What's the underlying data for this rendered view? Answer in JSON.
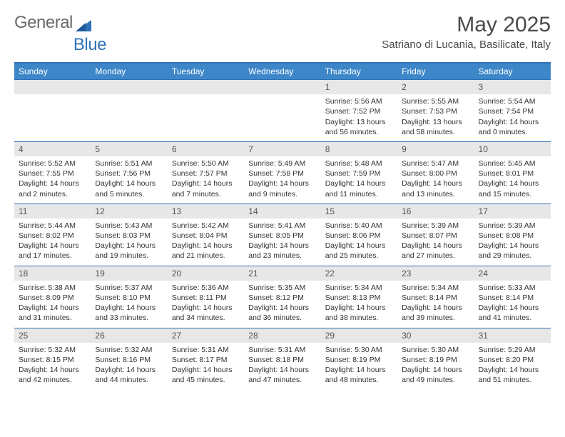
{
  "logo": {
    "text1": "General",
    "text2": "Blue"
  },
  "title": "May 2025",
  "location": "Satriano di Lucania, Basilicate, Italy",
  "day_names": [
    "Sunday",
    "Monday",
    "Tuesday",
    "Wednesday",
    "Thursday",
    "Friday",
    "Saturday"
  ],
  "colors": {
    "header_bg": "#3d87c9",
    "border": "#2e72b8",
    "daynum_bg": "#e7e7e7",
    "text": "#333333"
  },
  "weeks": [
    [
      {
        "blank": true
      },
      {
        "blank": true
      },
      {
        "blank": true
      },
      {
        "blank": true
      },
      {
        "day": "1",
        "sunrise": "Sunrise: 5:56 AM",
        "sunset": "Sunset: 7:52 PM",
        "daylight": "Daylight: 13 hours and 56 minutes."
      },
      {
        "day": "2",
        "sunrise": "Sunrise: 5:55 AM",
        "sunset": "Sunset: 7:53 PM",
        "daylight": "Daylight: 13 hours and 58 minutes."
      },
      {
        "day": "3",
        "sunrise": "Sunrise: 5:54 AM",
        "sunset": "Sunset: 7:54 PM",
        "daylight": "Daylight: 14 hours and 0 minutes."
      }
    ],
    [
      {
        "day": "4",
        "sunrise": "Sunrise: 5:52 AM",
        "sunset": "Sunset: 7:55 PM",
        "daylight": "Daylight: 14 hours and 2 minutes."
      },
      {
        "day": "5",
        "sunrise": "Sunrise: 5:51 AM",
        "sunset": "Sunset: 7:56 PM",
        "daylight": "Daylight: 14 hours and 5 minutes."
      },
      {
        "day": "6",
        "sunrise": "Sunrise: 5:50 AM",
        "sunset": "Sunset: 7:57 PM",
        "daylight": "Daylight: 14 hours and 7 minutes."
      },
      {
        "day": "7",
        "sunrise": "Sunrise: 5:49 AM",
        "sunset": "Sunset: 7:58 PM",
        "daylight": "Daylight: 14 hours and 9 minutes."
      },
      {
        "day": "8",
        "sunrise": "Sunrise: 5:48 AM",
        "sunset": "Sunset: 7:59 PM",
        "daylight": "Daylight: 14 hours and 11 minutes."
      },
      {
        "day": "9",
        "sunrise": "Sunrise: 5:47 AM",
        "sunset": "Sunset: 8:00 PM",
        "daylight": "Daylight: 14 hours and 13 minutes."
      },
      {
        "day": "10",
        "sunrise": "Sunrise: 5:45 AM",
        "sunset": "Sunset: 8:01 PM",
        "daylight": "Daylight: 14 hours and 15 minutes."
      }
    ],
    [
      {
        "day": "11",
        "sunrise": "Sunrise: 5:44 AM",
        "sunset": "Sunset: 8:02 PM",
        "daylight": "Daylight: 14 hours and 17 minutes."
      },
      {
        "day": "12",
        "sunrise": "Sunrise: 5:43 AM",
        "sunset": "Sunset: 8:03 PM",
        "daylight": "Daylight: 14 hours and 19 minutes."
      },
      {
        "day": "13",
        "sunrise": "Sunrise: 5:42 AM",
        "sunset": "Sunset: 8:04 PM",
        "daylight": "Daylight: 14 hours and 21 minutes."
      },
      {
        "day": "14",
        "sunrise": "Sunrise: 5:41 AM",
        "sunset": "Sunset: 8:05 PM",
        "daylight": "Daylight: 14 hours and 23 minutes."
      },
      {
        "day": "15",
        "sunrise": "Sunrise: 5:40 AM",
        "sunset": "Sunset: 8:06 PM",
        "daylight": "Daylight: 14 hours and 25 minutes."
      },
      {
        "day": "16",
        "sunrise": "Sunrise: 5:39 AM",
        "sunset": "Sunset: 8:07 PM",
        "daylight": "Daylight: 14 hours and 27 minutes."
      },
      {
        "day": "17",
        "sunrise": "Sunrise: 5:39 AM",
        "sunset": "Sunset: 8:08 PM",
        "daylight": "Daylight: 14 hours and 29 minutes."
      }
    ],
    [
      {
        "day": "18",
        "sunrise": "Sunrise: 5:38 AM",
        "sunset": "Sunset: 8:09 PM",
        "daylight": "Daylight: 14 hours and 31 minutes."
      },
      {
        "day": "19",
        "sunrise": "Sunrise: 5:37 AM",
        "sunset": "Sunset: 8:10 PM",
        "daylight": "Daylight: 14 hours and 33 minutes."
      },
      {
        "day": "20",
        "sunrise": "Sunrise: 5:36 AM",
        "sunset": "Sunset: 8:11 PM",
        "daylight": "Daylight: 14 hours and 34 minutes."
      },
      {
        "day": "21",
        "sunrise": "Sunrise: 5:35 AM",
        "sunset": "Sunset: 8:12 PM",
        "daylight": "Daylight: 14 hours and 36 minutes."
      },
      {
        "day": "22",
        "sunrise": "Sunrise: 5:34 AM",
        "sunset": "Sunset: 8:13 PM",
        "daylight": "Daylight: 14 hours and 38 minutes."
      },
      {
        "day": "23",
        "sunrise": "Sunrise: 5:34 AM",
        "sunset": "Sunset: 8:14 PM",
        "daylight": "Daylight: 14 hours and 39 minutes."
      },
      {
        "day": "24",
        "sunrise": "Sunrise: 5:33 AM",
        "sunset": "Sunset: 8:14 PM",
        "daylight": "Daylight: 14 hours and 41 minutes."
      }
    ],
    [
      {
        "day": "25",
        "sunrise": "Sunrise: 5:32 AM",
        "sunset": "Sunset: 8:15 PM",
        "daylight": "Daylight: 14 hours and 42 minutes."
      },
      {
        "day": "26",
        "sunrise": "Sunrise: 5:32 AM",
        "sunset": "Sunset: 8:16 PM",
        "daylight": "Daylight: 14 hours and 44 minutes."
      },
      {
        "day": "27",
        "sunrise": "Sunrise: 5:31 AM",
        "sunset": "Sunset: 8:17 PM",
        "daylight": "Daylight: 14 hours and 45 minutes."
      },
      {
        "day": "28",
        "sunrise": "Sunrise: 5:31 AM",
        "sunset": "Sunset: 8:18 PM",
        "daylight": "Daylight: 14 hours and 47 minutes."
      },
      {
        "day": "29",
        "sunrise": "Sunrise: 5:30 AM",
        "sunset": "Sunset: 8:19 PM",
        "daylight": "Daylight: 14 hours and 48 minutes."
      },
      {
        "day": "30",
        "sunrise": "Sunrise: 5:30 AM",
        "sunset": "Sunset: 8:19 PM",
        "daylight": "Daylight: 14 hours and 49 minutes."
      },
      {
        "day": "31",
        "sunrise": "Sunrise: 5:29 AM",
        "sunset": "Sunset: 8:20 PM",
        "daylight": "Daylight: 14 hours and 51 minutes."
      }
    ]
  ]
}
